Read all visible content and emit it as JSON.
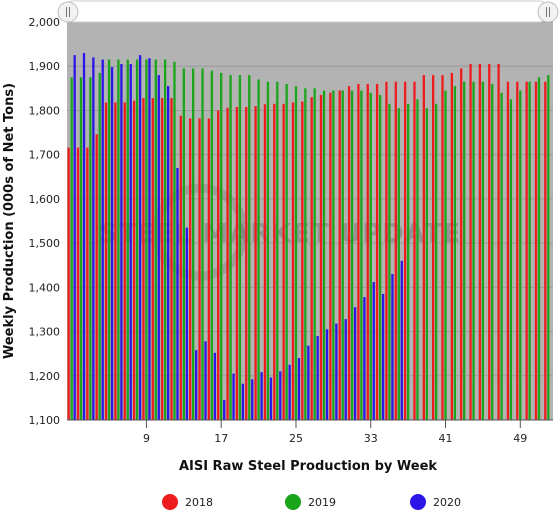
{
  "chart_data": {
    "type": "bar",
    "title": "",
    "xlabel": "AISI Raw Steel Production by Week",
    "ylabel": "Weekly Production (000s of Net Tons)",
    "ylim": [
      1100,
      2000
    ],
    "yticks": [
      1100,
      1200,
      1300,
      1400,
      1500,
      1600,
      1700,
      1800,
      1900,
      2000
    ],
    "yticks_labels": [
      "1,100",
      "1,200",
      "1,300",
      "1,400",
      "1,500",
      "1,600",
      "1,700",
      "1,800",
      "1,900",
      "2,000"
    ],
    "xlim": [
      1,
      52
    ],
    "xticks": [
      9,
      17,
      25,
      33,
      41,
      49
    ],
    "grid": true,
    "legend_position": "bottom",
    "watermark": "STEEL MARKET UPDATE",
    "series": [
      {
        "name": "2018",
        "color": "#ee1c1c",
        "values": [
          1716,
          1716,
          1716,
          1746,
          1818,
          1818,
          1818,
          1822,
          1828,
          1828,
          1828,
          1828,
          1788,
          1782,
          1782,
          1782,
          1800,
          1806,
          1808,
          1808,
          1810,
          1814,
          1815,
          1815,
          1818,
          1820,
          1830,
          1835,
          1840,
          1845,
          1855,
          1860,
          1860,
          1860,
          1865,
          1865,
          1865,
          1865,
          1880,
          1880,
          1880,
          1885,
          1895,
          1905,
          1905,
          1905,
          1905,
          1865,
          1865,
          1865,
          1865,
          1865
        ]
      },
      {
        "name": "2019",
        "color": "#1aa51a",
        "values": [
          1875,
          1875,
          1875,
          1885,
          1915,
          1915,
          1915,
          1915,
          1915,
          1915,
          1915,
          1910,
          1895,
          1895,
          1895,
          1890,
          1885,
          1880,
          1880,
          1880,
          1870,
          1865,
          1865,
          1860,
          1855,
          1850,
          1850,
          1845,
          1845,
          1845,
          1845,
          1845,
          1840,
          1835,
          1815,
          1805,
          1815,
          1825,
          1805,
          1815,
          1845,
          1855,
          1865,
          1865,
          1865,
          1860,
          1840,
          1825,
          1845,
          1865,
          1875,
          1880
        ]
      },
      {
        "name": "2020",
        "color": "#2a16e6",
        "values": [
          1925,
          1930,
          1920,
          1915,
          1898,
          1905,
          1905,
          1925,
          1918,
          1880,
          1855,
          1670,
          1535,
          1258,
          1278,
          1252,
          1145,
          1205,
          1182,
          1192,
          1208,
          1196,
          1210,
          1225,
          1240,
          1268,
          1290,
          1305,
          1318,
          1328,
          1355,
          1378,
          1412,
          1385,
          1430,
          1460
        ]
      }
    ]
  }
}
